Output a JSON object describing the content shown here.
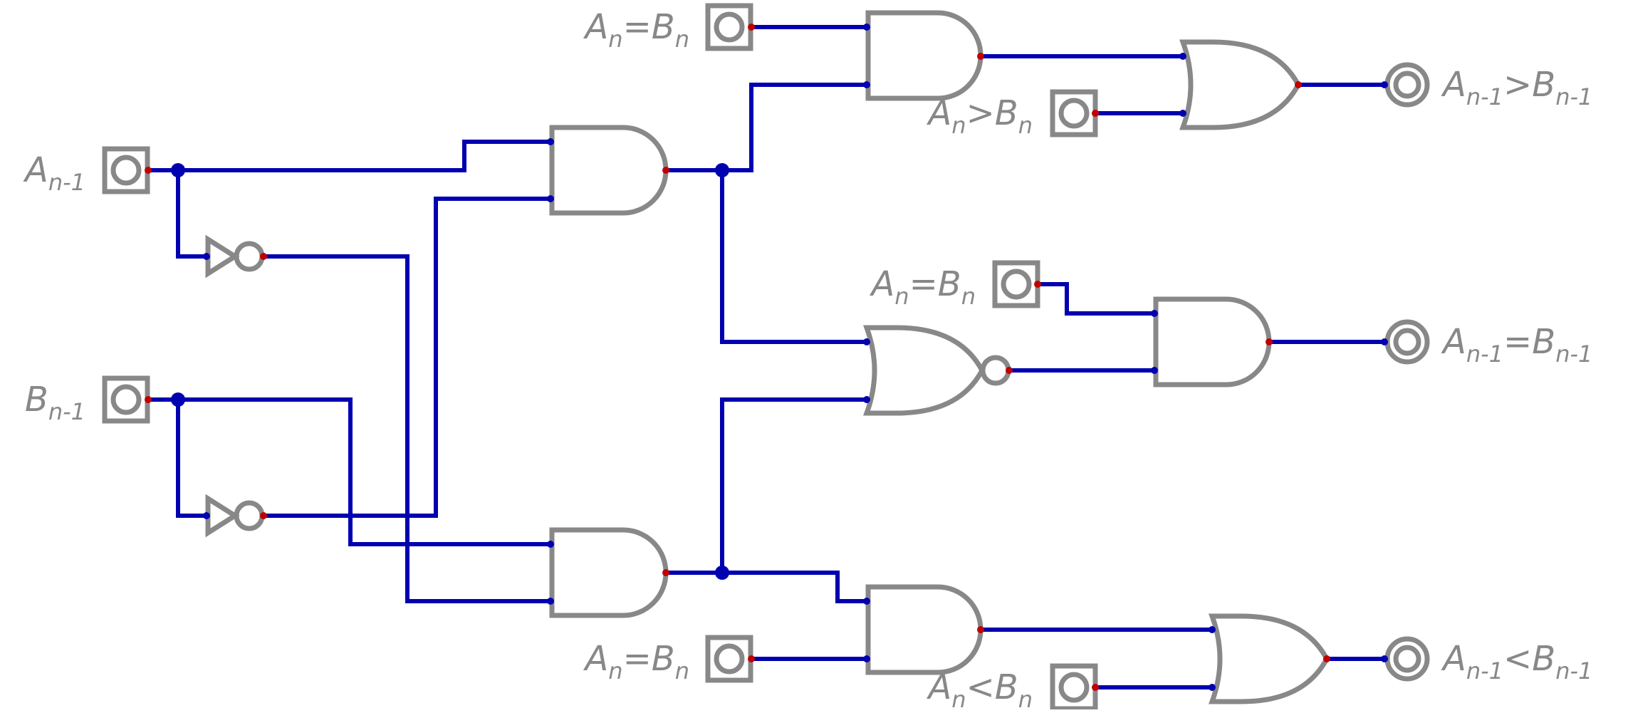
{
  "colors": {
    "wire": "#0000b0",
    "component": "#888888",
    "input_pin": "#0000b0",
    "output_pin": "#c00000",
    "background": "#ffffff"
  },
  "labels": {
    "in_a": {
      "main": "A",
      "sub": "n-1",
      "rest": "",
      "sub2": ""
    },
    "in_b": {
      "main": "B",
      "sub": "n-1",
      "rest": "",
      "sub2": ""
    },
    "top_eq": {
      "main": "A",
      "sub": "n",
      "rest": "=B",
      "sub2": "n"
    },
    "top_gt": {
      "main": "A",
      "sub": "n",
      "rest": ">B",
      "sub2": "n"
    },
    "mid_eq": {
      "main": "A",
      "sub": "n",
      "rest": "=B",
      "sub2": "n"
    },
    "bot_eq": {
      "main": "A",
      "sub": "n",
      "rest": "=B",
      "sub2": "n"
    },
    "bot_lt": {
      "main": "A",
      "sub": "n",
      "rest": "<B",
      "sub2": "n"
    },
    "out_gt": {
      "main": "A",
      "sub": "n-1",
      "rest": ">B",
      "sub2": "n-1"
    },
    "out_eq": {
      "main": "A",
      "sub": "n-1",
      "rest": "=B",
      "sub2": "n-1"
    },
    "out_lt": {
      "main": "A",
      "sub": "n-1",
      "rest": "<B",
      "sub2": "n-1"
    }
  },
  "components": {
    "inputs": [
      "in-a",
      "in-b",
      "in-top-eq",
      "in-top-gt",
      "in-mid-eq",
      "in-bot-eq",
      "in-bot-lt"
    ],
    "not_gates": [
      "not-a",
      "not-b"
    ],
    "and_gates": [
      "and-a-notb",
      "and-nota-b",
      "and-top",
      "and-mid",
      "and-bot"
    ],
    "or_gates": [
      "or-top",
      "or-bot"
    ],
    "nor_gates": [
      "nor-mid"
    ],
    "outputs": [
      "out-gt",
      "out-eq",
      "out-lt"
    ]
  }
}
